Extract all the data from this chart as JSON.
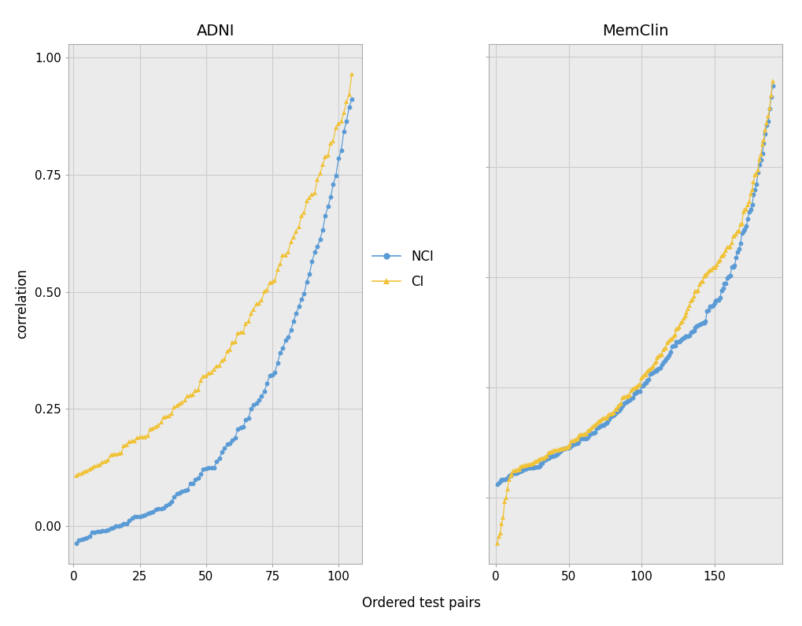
{
  "blue_color": "#5B9BD5",
  "yellow_color": "#F0C238",
  "title_adni": "ADNI",
  "title_memclin": "MemClin",
  "xlabel": "Ordered test pairs",
  "ylabel": "correlation",
  "ylim_adni": [
    -0.08,
    1.03
  ],
  "ylim_memclin": [
    -0.15,
    1.03
  ],
  "adni_xlim": [
    -2,
    109
  ],
  "memclin_xlim": [
    -5,
    197
  ],
  "yticks": [
    0.0,
    0.25,
    0.5,
    0.75,
    1.0
  ],
  "adni_xticks": [
    0,
    25,
    50,
    75,
    100
  ],
  "memclin_xticks": [
    0,
    50,
    100,
    150
  ],
  "legend_nci": "NCI",
  "legend_ci": "CI",
  "background_color": "#FFFFFF",
  "grid_color": "#CCCCCC",
  "panel_bg": "#EBEBEB",
  "title_fontsize": 14,
  "label_fontsize": 12,
  "tick_fontsize": 11
}
